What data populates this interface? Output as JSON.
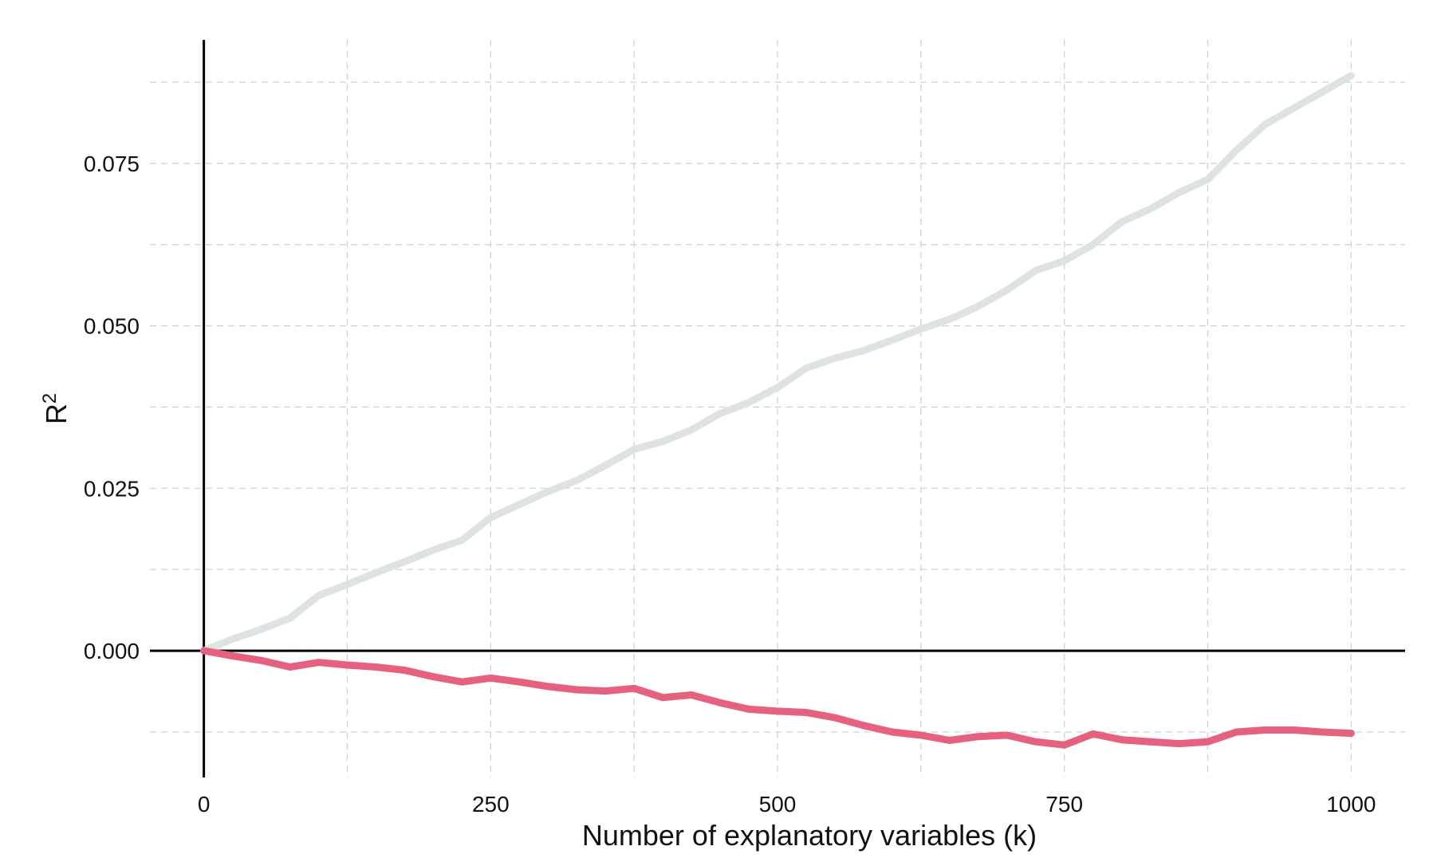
{
  "chart_data": {
    "type": "line",
    "xlabel": "Number of explanatory variables (k)",
    "ylabel": "R",
    "ylabel_superscript": "2",
    "x_ticks": [
      0,
      250,
      500,
      750,
      1000
    ],
    "y_ticks": [
      0.0,
      0.025,
      0.05,
      0.075
    ],
    "x_tick_labels": [
      "0",
      "250",
      "500",
      "750",
      "1000"
    ],
    "y_tick_labels": [
      "0.000",
      "0.025",
      "0.050",
      "0.075"
    ],
    "xlim": [
      -47,
      1047
    ],
    "ylim": [
      -0.0195,
      0.094
    ],
    "grid": true,
    "legend": "none",
    "series": [
      {
        "color": "#dde3e1",
        "x": [
          0,
          25,
          50,
          75,
          100,
          125,
          150,
          175,
          200,
          225,
          250,
          275,
          300,
          325,
          350,
          375,
          400,
          425,
          450,
          475,
          500,
          525,
          550,
          575,
          600,
          625,
          650,
          675,
          700,
          725,
          750,
          775,
          800,
          825,
          850,
          875,
          900,
          925,
          950,
          975,
          1000
        ],
        "y": [
          0.0,
          0.0018,
          0.0033,
          0.005,
          0.0085,
          0.0102,
          0.012,
          0.0137,
          0.0155,
          0.017,
          0.0205,
          0.0225,
          0.0245,
          0.0262,
          0.0285,
          0.031,
          0.0322,
          0.034,
          0.0365,
          0.0382,
          0.0405,
          0.0435,
          0.045,
          0.0462,
          0.0478,
          0.0495,
          0.051,
          0.053,
          0.0555,
          0.0585,
          0.06,
          0.0625,
          0.066,
          0.068,
          0.0705,
          0.0725,
          0.077,
          0.081,
          0.0835,
          0.086,
          0.0885
        ]
      },
      {
        "color": "#e6607f",
        "x": [
          0,
          25,
          50,
          75,
          100,
          125,
          150,
          175,
          200,
          225,
          250,
          275,
          300,
          325,
          350,
          375,
          400,
          425,
          450,
          475,
          500,
          525,
          550,
          575,
          600,
          625,
          650,
          675,
          700,
          725,
          750,
          775,
          800,
          825,
          850,
          875,
          900,
          925,
          950,
          975,
          1000
        ],
        "y": [
          0.0,
          -0.0008,
          -0.0015,
          -0.0025,
          -0.0018,
          -0.0022,
          -0.0025,
          -0.003,
          -0.004,
          -0.0048,
          -0.0042,
          -0.0048,
          -0.0055,
          -0.006,
          -0.0062,
          -0.0058,
          -0.0072,
          -0.0068,
          -0.008,
          -0.009,
          -0.0093,
          -0.0095,
          -0.0103,
          -0.0115,
          -0.0125,
          -0.013,
          -0.0138,
          -0.0132,
          -0.013,
          -0.014,
          -0.0145,
          -0.0128,
          -0.0137,
          -0.014,
          -0.0143,
          -0.014,
          -0.0125,
          -0.0122,
          -0.0122,
          -0.0125,
          -0.0127
        ]
      }
    ]
  }
}
